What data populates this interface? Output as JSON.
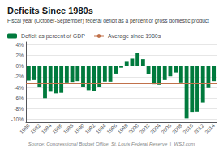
{
  "chart_data": {
    "type": "bar",
    "title": "Deficits Since 1980s",
    "subtitle": "Fiscal year (October-September) federal deficit as a percent of gross domestic product",
    "annotations": [
      "Source: Congressional Budget Office, St. Louis Federal Reserve  |  WSJ.com"
    ],
    "categories": [
      "1980",
      null,
      "1982",
      null,
      "1984",
      null,
      "1986",
      null,
      "1988",
      null,
      "1990",
      null,
      "1992",
      null,
      "1994",
      null,
      "1996",
      null,
      "1998",
      null,
      "2000",
      null,
      "2002",
      null,
      "2004",
      null,
      "2006",
      null,
      "2008",
      null,
      "2010",
      null,
      "2012",
      null,
      "2014"
    ],
    "series": [
      {
        "name": "Deficit as percent of GDP",
        "type": "bar",
        "color": "#007a3d",
        "values": [
          -2.7,
          -2.6,
          -4.0,
          -6.0,
          -4.8,
          -5.1,
          -5.0,
          -3.2,
          -3.1,
          -2.8,
          -3.9,
          -4.5,
          -4.7,
          -3.9,
          -2.9,
          -2.9,
          -1.4,
          -0.3,
          0.8,
          1.4,
          2.4,
          1.3,
          -1.5,
          -3.4,
          -3.5,
          -2.6,
          -1.9,
          -1.2,
          -3.2,
          -9.8,
          -8.7,
          -8.5,
          -6.8,
          -4.1,
          -2.8
        ]
      },
      {
        "name": "Average since 1980s",
        "type": "line",
        "color": "#c0714a",
        "value": -3.2
      }
    ],
    "ylim": [
      -10.5,
      4.5
    ],
    "yticks": [
      {
        "value": -10,
        "label": "-10%"
      },
      {
        "value": -8,
        "label": "-8%"
      },
      {
        "value": -6,
        "label": "-6%"
      },
      {
        "value": -4,
        "label": "-4%"
      },
      {
        "value": -2,
        "label": "-2%"
      },
      {
        "value": 0,
        "label": "0%"
      },
      {
        "value": 2,
        "label": "2%"
      },
      {
        "value": 4,
        "label": "4%"
      }
    ],
    "grid": true,
    "legend": "upper left"
  }
}
